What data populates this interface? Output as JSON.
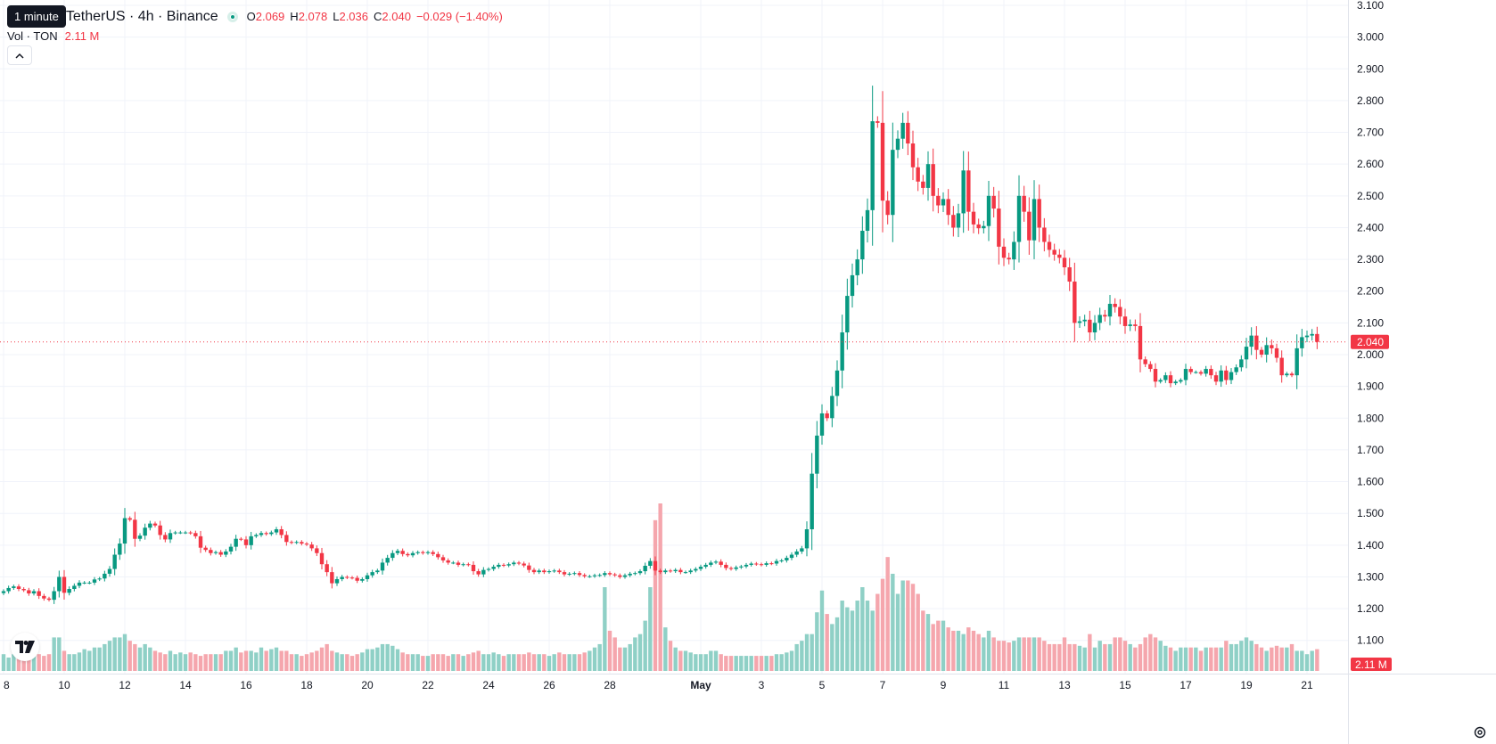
{
  "header": {
    "tooltip": "1 minute",
    "symbol": "TetherUS · 4h · Binance",
    "ohlc": [
      {
        "label": "O",
        "value": "2.069"
      },
      {
        "label": "H",
        "value": "2.078"
      },
      {
        "label": "L",
        "value": "2.036"
      },
      {
        "label": "C",
        "value": "2.040"
      }
    ],
    "change": "−0.029 (−1.40%)",
    "volume_label": "Vol · TON",
    "volume_value": "2.11 M"
  },
  "icons": {
    "collapse": "chevron-up-icon",
    "logo": "tradingview-logo-icon",
    "settings": "gear-icon"
  },
  "colors": {
    "up": "#089981",
    "down": "#f23645",
    "up_volume": "#8fd0c6",
    "down_volume": "#f5a6ad",
    "grid": "#f0f3fa",
    "axis_text": "#131722",
    "price_line": "#f23645"
  },
  "chart_data": {
    "type": "candlestick",
    "interval": "4h",
    "y_axis": {
      "ticks": [
        "3.100",
        "3.000",
        "2.900",
        "2.800",
        "2.700",
        "2.600",
        "2.500",
        "2.400",
        "2.300",
        "2.200",
        "2.100",
        "2.000",
        "1.900",
        "1.800",
        "1.700",
        "1.600",
        "1.500",
        "1.400",
        "1.300",
        "1.200",
        "1.100"
      ],
      "ylim": [
        1.06,
        3.1
      ]
    },
    "x_axis": {
      "ticks": [
        "8",
        "10",
        "12",
        "14",
        "16",
        "18",
        "20",
        "22",
        "24",
        "26",
        "28",
        "May",
        "3",
        "5",
        "7",
        "9",
        "11",
        "13",
        "15",
        "17",
        "19",
        "21"
      ],
      "tick_bars": [
        0,
        12,
        24,
        36,
        48,
        60,
        72,
        84,
        96,
        108,
        120,
        138,
        150,
        162,
        174,
        186,
        198,
        210,
        222,
        234,
        246,
        258
      ]
    },
    "last_price": "2.040",
    "last_volume": "2.11 M",
    "closes": [
      1.255,
      1.265,
      1.27,
      1.262,
      1.258,
      1.248,
      1.255,
      1.24,
      1.232,
      1.228,
      1.255,
      1.3,
      1.25,
      1.262,
      1.272,
      1.282,
      1.282,
      1.282,
      1.292,
      1.295,
      1.31,
      1.325,
      1.37,
      1.405,
      1.485,
      1.48,
      1.42,
      1.43,
      1.455,
      1.468,
      1.462,
      1.432,
      1.418,
      1.438,
      1.44,
      1.44,
      1.44,
      1.438,
      1.428,
      1.392,
      1.385,
      1.375,
      1.378,
      1.37,
      1.38,
      1.395,
      1.42,
      1.418,
      1.4,
      1.428,
      1.432,
      1.438,
      1.435,
      1.44,
      1.45,
      1.432,
      1.41,
      1.408,
      1.41,
      1.405,
      1.402,
      1.39,
      1.375,
      1.34,
      1.315,
      1.28,
      1.293,
      1.3,
      1.298,
      1.297,
      1.288,
      1.293,
      1.305,
      1.315,
      1.32,
      1.345,
      1.36,
      1.375,
      1.382,
      1.372,
      1.368,
      1.375,
      1.378,
      1.375,
      1.378,
      1.372,
      1.362,
      1.352,
      1.345,
      1.345,
      1.338,
      1.34,
      1.338,
      1.318,
      1.308,
      1.322,
      1.325,
      1.332,
      1.338,
      1.336,
      1.34,
      1.345,
      1.342,
      1.336,
      1.322,
      1.315,
      1.32,
      1.315,
      1.318,
      1.32,
      1.315,
      1.308,
      1.31,
      1.312,
      1.306,
      1.302,
      1.302,
      1.305,
      1.306,
      1.312,
      1.308,
      1.305,
      1.3,
      1.305,
      1.31,
      1.312,
      1.318,
      1.335,
      1.35,
      1.32,
      1.315,
      1.32,
      1.318,
      1.322,
      1.315,
      1.315,
      1.32,
      1.325,
      1.332,
      1.338,
      1.345,
      1.348,
      1.338,
      1.328,
      1.325,
      1.33,
      1.333,
      1.338,
      1.342,
      1.34,
      1.338,
      1.343,
      1.342,
      1.35,
      1.352,
      1.36,
      1.37,
      1.38,
      1.39,
      1.45,
      1.625,
      1.745,
      1.815,
      1.8,
      1.87,
      1.95,
      2.07,
      2.185,
      2.25,
      2.3,
      2.39,
      2.455,
      2.735,
      2.73,
      2.485,
      2.44,
      2.645,
      2.68,
      2.73,
      2.665,
      2.59,
      2.545,
      2.525,
      2.6,
      2.5,
      2.47,
      2.49,
      2.44,
      2.4,
      2.445,
      2.58,
      2.45,
      2.41,
      2.398,
      2.405,
      2.5,
      2.46,
      2.34,
      2.305,
      2.3,
      2.355,
      2.5,
      2.45,
      2.36,
      2.49,
      2.4,
      2.355,
      2.33,
      2.315,
      2.305,
      2.275,
      2.23,
      2.1,
      2.105,
      2.11,
      2.07,
      2.1,
      2.125,
      2.12,
      2.16,
      2.15,
      2.12,
      2.09,
      2.095,
      2.09,
      1.985,
      1.97,
      1.955,
      1.915,
      1.92,
      1.935,
      1.91,
      1.915,
      1.92,
      1.955,
      1.945,
      1.945,
      1.94,
      1.955,
      1.935,
      1.915,
      1.95,
      1.92,
      1.945,
      1.96,
      1.985,
      2.025,
      2.06,
      2.015,
      2.0,
      2.03,
      2.02,
      1.99,
      1.935,
      1.94,
      1.935,
      2.02,
      2.055,
      2.06,
      2.065,
      2.04
    ],
    "volumes_rel": [
      0.1,
      0.08,
      0.1,
      0.12,
      0.09,
      0.1,
      0.11,
      0.1,
      0.09,
      0.1,
      0.2,
      0.2,
      0.12,
      0.1,
      0.1,
      0.11,
      0.13,
      0.12,
      0.14,
      0.14,
      0.16,
      0.18,
      0.2,
      0.2,
      0.22,
      0.18,
      0.16,
      0.14,
      0.16,
      0.14,
      0.12,
      0.11,
      0.1,
      0.12,
      0.1,
      0.11,
      0.1,
      0.11,
      0.1,
      0.09,
      0.1,
      0.1,
      0.1,
      0.1,
      0.12,
      0.12,
      0.14,
      0.11,
      0.12,
      0.12,
      0.11,
      0.14,
      0.12,
      0.13,
      0.14,
      0.12,
      0.12,
      0.1,
      0.1,
      0.09,
      0.1,
      0.11,
      0.12,
      0.14,
      0.16,
      0.12,
      0.11,
      0.1,
      0.1,
      0.09,
      0.1,
      0.11,
      0.13,
      0.13,
      0.14,
      0.16,
      0.16,
      0.15,
      0.13,
      0.11,
      0.1,
      0.1,
      0.1,
      0.09,
      0.09,
      0.1,
      0.1,
      0.1,
      0.09,
      0.1,
      0.1,
      0.09,
      0.1,
      0.11,
      0.12,
      0.1,
      0.1,
      0.11,
      0.1,
      0.09,
      0.1,
      0.1,
      0.1,
      0.1,
      0.11,
      0.1,
      0.1,
      0.1,
      0.09,
      0.1,
      0.11,
      0.1,
      0.1,
      0.1,
      0.1,
      0.11,
      0.12,
      0.14,
      0.16,
      0.5,
      0.24,
      0.2,
      0.14,
      0.14,
      0.16,
      0.2,
      0.22,
      0.3,
      0.5,
      0.9,
      1.0,
      0.26,
      0.18,
      0.14,
      0.12,
      0.12,
      0.11,
      0.1,
      0.1,
      0.1,
      0.12,
      0.12,
      0.1,
      0.09,
      0.09,
      0.09,
      0.09,
      0.09,
      0.09,
      0.09,
      0.09,
      0.09,
      0.09,
      0.1,
      0.1,
      0.11,
      0.12,
      0.16,
      0.18,
      0.22,
      0.22,
      0.35,
      0.48,
      0.34,
      0.28,
      0.32,
      0.42,
      0.38,
      0.36,
      0.42,
      0.5,
      0.42,
      0.36,
      0.46,
      0.55,
      0.68,
      0.58,
      0.46,
      0.54,
      0.54,
      0.52,
      0.46,
      0.36,
      0.34,
      0.28,
      0.3,
      0.3,
      0.26,
      0.24,
      0.24,
      0.22,
      0.26,
      0.24,
      0.22,
      0.2,
      0.24,
      0.2,
      0.18,
      0.18,
      0.17,
      0.18,
      0.2,
      0.2,
      0.2,
      0.2,
      0.2,
      0.18,
      0.16,
      0.16,
      0.16,
      0.2,
      0.16,
      0.16,
      0.15,
      0.14,
      0.22,
      0.14,
      0.18,
      0.16,
      0.16,
      0.2,
      0.2,
      0.18,
      0.16,
      0.14,
      0.16,
      0.2,
      0.22,
      0.2,
      0.18,
      0.15,
      0.14,
      0.12,
      0.14,
      0.14,
      0.14,
      0.14,
      0.12,
      0.14,
      0.14,
      0.14,
      0.14,
      0.18,
      0.16,
      0.16,
      0.18,
      0.2,
      0.18,
      0.16,
      0.14,
      0.12,
      0.14,
      0.15,
      0.14,
      0.14,
      0.16,
      0.12,
      0.12,
      0.1,
      0.12,
      0.13,
      0.12,
      0.14,
      0.14,
      0.16,
      0.14,
      0.12
    ]
  }
}
